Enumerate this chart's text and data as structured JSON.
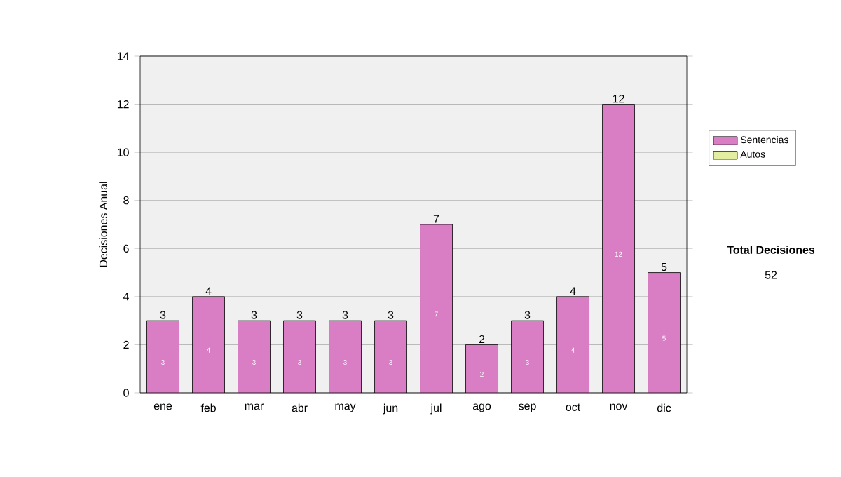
{
  "chart_data": {
    "type": "bar",
    "stacked": true,
    "categories": [
      "ene",
      "feb",
      "mar",
      "abr",
      "may",
      "jun",
      "jul",
      "ago",
      "sep",
      "oct",
      "nov",
      "dic"
    ],
    "series": [
      {
        "name": "Sentencias",
        "color": "#d97ec4",
        "values": [
          3,
          4,
          3,
          3,
          3,
          3,
          7,
          2,
          3,
          4,
          12,
          5
        ]
      },
      {
        "name": "Autos",
        "color": "#e3eea0",
        "values": [
          null,
          null,
          null,
          null,
          null,
          null,
          null,
          null,
          null,
          null,
          null,
          null
        ]
      }
    ],
    "ylabel": "Decisiones Anual",
    "ylim": [
      0,
      14
    ],
    "yticks": [
      0,
      2,
      4,
      6,
      8,
      10,
      12,
      14
    ],
    "grid": "y",
    "legend": "right",
    "data_labels": true,
    "totals": [
      "3",
      "4",
      "3",
      "3",
      "3",
      "3",
      "7",
      "2",
      "3",
      "4",
      "12",
      "5"
    ],
    "annotations": [
      "Total Decisiones",
      "52"
    ]
  }
}
